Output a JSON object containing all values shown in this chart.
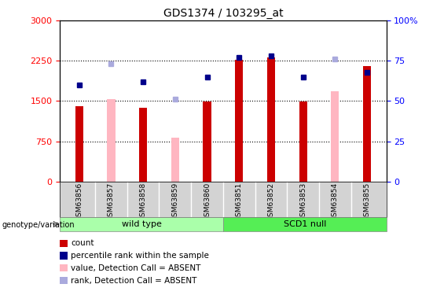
{
  "title": "GDS1374 / 103295_at",
  "samples": [
    "GSM63856",
    "GSM63857",
    "GSM63858",
    "GSM63859",
    "GSM63860",
    "GSM63851",
    "GSM63852",
    "GSM63853",
    "GSM63854",
    "GSM63855"
  ],
  "count_values": [
    1400,
    null,
    1380,
    null,
    1490,
    2270,
    2320,
    1490,
    null,
    2150
  ],
  "percentile_values": [
    60,
    null,
    62,
    null,
    65,
    77,
    78,
    65,
    null,
    68
  ],
  "absent_value_bars": [
    null,
    1540,
    null,
    820,
    null,
    null,
    null,
    null,
    1680,
    null
  ],
  "absent_rank_markers": [
    null,
    73,
    null,
    51,
    null,
    null,
    null,
    null,
    76,
    null
  ],
  "ylim_left": [
    0,
    3000
  ],
  "ylim_right": [
    0,
    100
  ],
  "yticks_left": [
    0,
    750,
    1500,
    2250,
    3000
  ],
  "yticks_right": [
    0,
    25,
    50,
    75,
    100
  ],
  "color_count": "#CC0000",
  "color_percentile": "#00008B",
  "color_absent_value": "#FFB6C1",
  "color_absent_rank": "#AAAADD",
  "bar_width": 0.25,
  "plot_bg_color": "#FFFFFF",
  "group_wt_color": "#AAFFAA",
  "group_scd_color": "#55EE55",
  "xtick_bg_color": "#D3D3D3",
  "legend_items": [
    {
      "label": "count",
      "color": "#CC0000"
    },
    {
      "label": "percentile rank within the sample",
      "color": "#00008B"
    },
    {
      "label": "value, Detection Call = ABSENT",
      "color": "#FFB6C1"
    },
    {
      "label": "rank, Detection Call = ABSENT",
      "color": "#AAAADD"
    }
  ]
}
